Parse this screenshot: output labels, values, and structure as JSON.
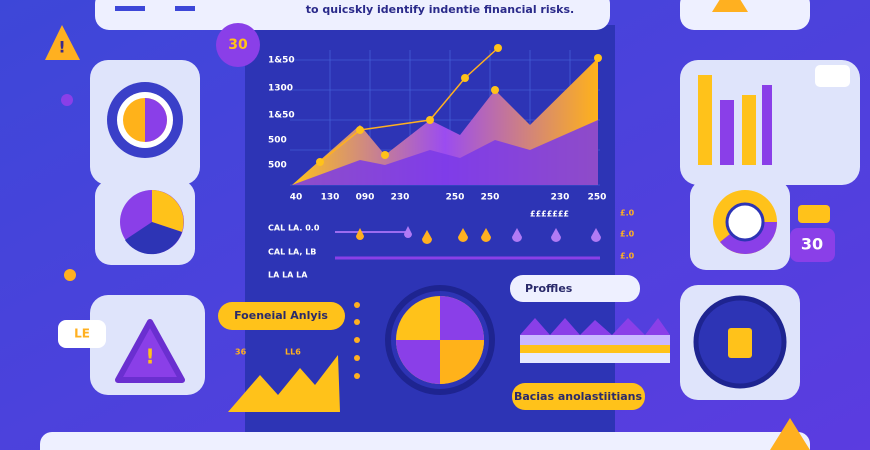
{
  "header": {
    "caption": "to quicskly identify indentie financial risks."
  },
  "badges": [
    "30",
    "30"
  ],
  "chart": {
    "yticks": [
      "1&50",
      "1300",
      "1&50",
      "500",
      "500"
    ],
    "xticks": [
      "40",
      "130",
      "090",
      "230",
      "250",
      "250",
      "230",
      "250"
    ]
  },
  "rows": {
    "heading": "£££££££",
    "left": [
      "CAL LA. 0.0",
      "CAL LA, LB",
      "LA LA LA"
    ],
    "right": [
      "£.0",
      "£.0",
      "£.0"
    ]
  },
  "pills": {
    "analysis": "Foeneial Anlyis",
    "profiles": "Proffles",
    "bottom": "Bacias anolastiitians"
  },
  "mini": {
    "labels": [
      "36",
      "LL6"
    ]
  },
  "tag": "LE"
}
